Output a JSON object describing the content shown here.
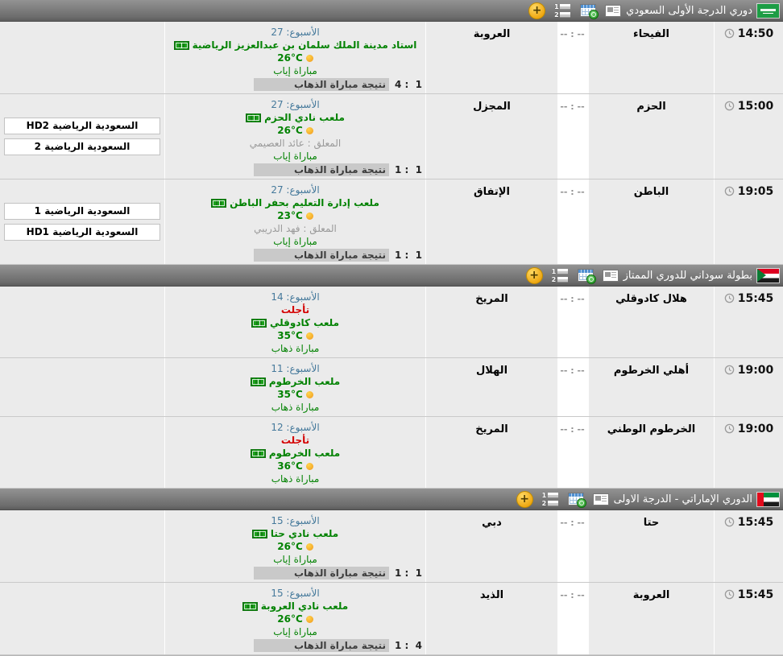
{
  "toolbar": {
    "add_glyph": "+",
    "list_numbers": [
      "1",
      "2"
    ],
    "icons": [
      "plus-icon",
      "numbered-list-icon",
      "calendar-clock-icon",
      "news-table-icon"
    ]
  },
  "labels": {
    "first_leg_result": "نتيجة مباراة الذهاب"
  },
  "colors": {
    "header_gray": "#6d6d6d",
    "row_background": "#ebebeb",
    "score_column": "#ffffff",
    "detail_green": "#028202",
    "week_blue": "#45799b",
    "postponed_red": "#d40000",
    "result_band_gray": "#c9c9c9",
    "sun_orange": "#f0971c",
    "pitch_green": "#1ba11b",
    "add_button_yellow": "#eea60f"
  },
  "sections": [
    {
      "title": "دوري الدرجة الأولى السعودي",
      "flag": "saudi",
      "matches": [
        {
          "time": "14:50",
          "home_team": "الفيحاء",
          "score": "-- : --",
          "away_team": "العروبة",
          "week": "الأسبوع: 27",
          "stadium": "استاد مدينة الملك سلمان بن عبدالعزيز الرياضية",
          "temperature": "26°C",
          "match_type": "مباراة إياب",
          "first_leg_score": "4 :  1",
          "channels": []
        },
        {
          "time": "15:00",
          "home_team": "الحزم",
          "score": "-- : --",
          "away_team": "المجزل",
          "week": "الأسبوع: 27",
          "stadium": "ملعب نادي الحزم",
          "temperature": "26°C",
          "commentator": "المعلق : عائد العصيمي",
          "match_type": "مباراة إياب",
          "first_leg_score": "1 :  1",
          "channels": [
            "السعودية الرياضية HD2",
            "السعودية الرياضية 2"
          ]
        },
        {
          "time": "19:05",
          "home_team": "الباطن",
          "score": "-- : --",
          "away_team": "الإتفاق",
          "week": "الأسبوع: 27",
          "stadium": "ملعب إدارة التعليم بحفر الباطن",
          "temperature": "23°C",
          "commentator": "المعلق : فهد الدريبي",
          "match_type": "مباراة إياب",
          "first_leg_score": "1 :  1",
          "channels": [
            "السعودية الرياضية 1",
            "السعودية الرياضية HD1"
          ]
        }
      ]
    },
    {
      "title": "بطولة سوداني للدوري الممتاز",
      "flag": "sudan",
      "matches": [
        {
          "time": "15:45",
          "home_team": "هلال كادوقلي",
          "score": "-- : --",
          "away_team": "المريخ",
          "week": "الأسبوع: 14",
          "postponed": "تأجلت",
          "stadium": "ملعب كادوقلي",
          "temperature": "35°C",
          "match_type": "مباراة ذهاب",
          "channels": []
        },
        {
          "time": "19:00",
          "home_team": "أهلي الخرطوم",
          "score": "-- : --",
          "away_team": "الهلال",
          "week": "الأسبوع: 11",
          "stadium": "ملعب الخرطوم",
          "temperature": "35°C",
          "match_type": "مباراة ذهاب",
          "channels": []
        },
        {
          "time": "19:00",
          "home_team": "الخرطوم الوطني",
          "score": "-- : --",
          "away_team": "المريخ",
          "week": "الأسبوع: 12",
          "postponed": "تأجلت",
          "stadium": "ملعب الخرطوم",
          "temperature": "36°C",
          "match_type": "مباراة ذهاب",
          "channels": []
        }
      ]
    },
    {
      "title": "الدوري الإماراتي - الدرجة الاولى",
      "flag": "uae",
      "matches": [
        {
          "time": "15:45",
          "home_team": "حتا",
          "score": "-- : --",
          "away_team": "دبي",
          "week": "الأسبوع: 15",
          "stadium": "ملعب نادي حتا",
          "temperature": "26°C",
          "match_type": "مباراة إياب",
          "first_leg_score": "1 :  1",
          "channels": []
        },
        {
          "time": "15:45",
          "home_team": "العروبة",
          "score": "-- : --",
          "away_team": "الذيد",
          "week": "الأسبوع: 15",
          "stadium": "ملعب نادي العروبة",
          "temperature": "26°C",
          "match_type": "مباراة إياب",
          "first_leg_score": "1 :  4",
          "channels": []
        }
      ]
    }
  ]
}
